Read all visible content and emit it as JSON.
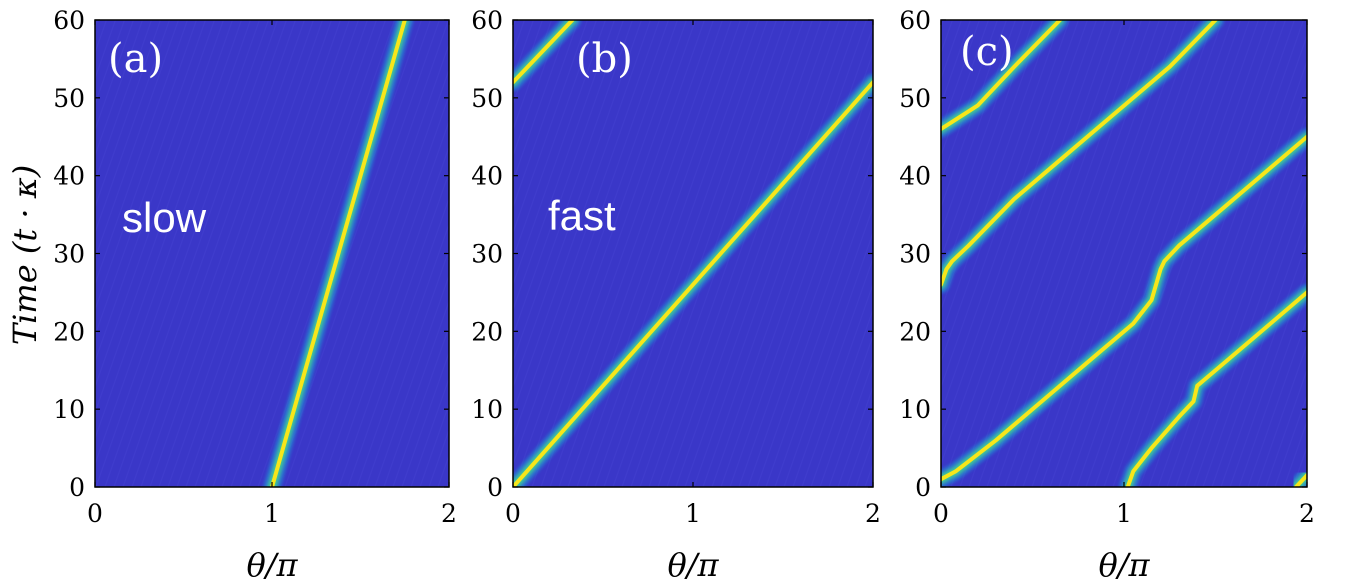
{
  "figure": {
    "ylabel": "Time (t · κ)",
    "xlabel": "θ/π"
  },
  "colors": {
    "background": "#3a37c8",
    "mid": "#1fa0d8",
    "mid2": "#3fc59a",
    "peak": "#f7e61a",
    "frame": "#000000"
  },
  "chart_data": [
    {
      "type": "heatmap",
      "panel_label": "(a)",
      "annotation": "slow",
      "xlim": [
        0,
        2
      ],
      "ylim": [
        0,
        60
      ],
      "x_ticks": [
        0,
        1,
        2
      ],
      "y_ticks": [
        0,
        10,
        20,
        30,
        40,
        50,
        60
      ],
      "ylabel": "Time (t · κ)",
      "xlabel": "θ/π",
      "ridges": [
        {
          "points": [
            [
              1.0,
              0
            ],
            [
              1.75,
              60
            ]
          ]
        }
      ]
    },
    {
      "type": "heatmap",
      "panel_label": "(b)",
      "annotation": "fast",
      "xlim": [
        0,
        2
      ],
      "ylim": [
        0,
        60
      ],
      "x_ticks": [
        0,
        1,
        2
      ],
      "y_ticks": [
        0,
        10,
        20,
        30,
        40,
        50,
        60
      ],
      "ylabel": "",
      "xlabel": "θ/π",
      "ridges": [
        {
          "points": [
            [
              0.0,
              0
            ],
            [
              2.0,
              52
            ]
          ]
        },
        {
          "points": [
            [
              0.0,
              52
            ],
            [
              0.33,
              60
            ]
          ]
        }
      ]
    },
    {
      "type": "heatmap",
      "panel_label": "(c)",
      "annotation": "",
      "xlim": [
        0,
        2
      ],
      "ylim": [
        0,
        60
      ],
      "x_ticks": [
        0,
        1,
        2
      ],
      "y_ticks": [
        0,
        10,
        20,
        30,
        40,
        50,
        60
      ],
      "ylabel": "",
      "xlabel": "θ/π",
      "ridges": [
        {
          "points": [
            [
              0.0,
              1
            ],
            [
              0.08,
              2
            ],
            [
              0.3,
              6
            ],
            [
              0.6,
              12
            ],
            [
              0.85,
              17
            ],
            [
              1.05,
              21
            ],
            [
              1.15,
              24
            ],
            [
              1.2,
              28
            ],
            [
              1.22,
              29
            ],
            [
              1.3,
              31
            ],
            [
              1.55,
              36
            ],
            [
              1.8,
              41
            ],
            [
              2.0,
              45
            ]
          ]
        },
        {
          "points": [
            [
              1.02,
              0
            ],
            [
              1.05,
              2
            ],
            [
              1.15,
              5
            ],
            [
              1.3,
              9
            ],
            [
              1.38,
              11
            ],
            [
              1.4,
              13
            ],
            [
              1.55,
              16
            ],
            [
              1.8,
              21
            ],
            [
              2.0,
              25
            ]
          ]
        },
        {
          "points": [
            [
              0.0,
              26
            ],
            [
              0.03,
              28
            ],
            [
              0.06,
              29
            ],
            [
              0.15,
              31
            ],
            [
              0.4,
              37
            ],
            [
              0.7,
              43
            ],
            [
              1.0,
              49
            ],
            [
              1.25,
              54
            ],
            [
              1.5,
              60
            ]
          ]
        },
        {
          "points": [
            [
              0.0,
              46
            ],
            [
              0.2,
              49
            ],
            [
              0.4,
              54
            ],
            [
              0.65,
              60
            ]
          ]
        },
        {
          "points": [
            [
              1.94,
              0
            ],
            [
              2.0,
              1.5
            ]
          ]
        }
      ]
    }
  ]
}
